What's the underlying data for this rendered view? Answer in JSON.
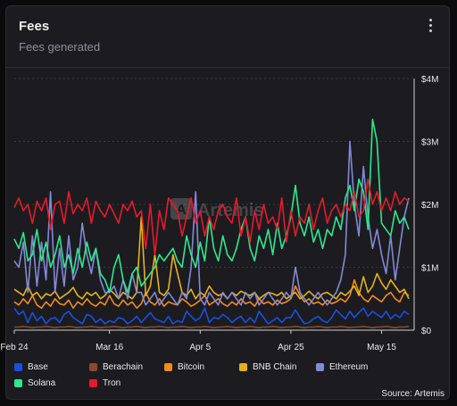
{
  "header": {
    "title": "Fees",
    "subtitle": "Fees generated",
    "menu_icon": "more-vertical-icon"
  },
  "watermark": "Artemis",
  "source": "Source: Artemis",
  "colors": {
    "Base": "#1b4fe0",
    "Berachain": "#8b4a2b",
    "Bitcoin": "#f08a24",
    "BNB Chain": "#e5b11a",
    "Ethereum": "#8389d6",
    "Solana": "#2ee88e",
    "Tron": "#e51b2a"
  },
  "chart_data": {
    "type": "line",
    "title": "Fees",
    "subtitle": "Fees generated",
    "x_ticks": [
      "Feb 24",
      "Mar 16",
      "Apr 5",
      "Apr 25",
      "May 15"
    ],
    "x_tick_index": [
      0,
      21,
      41,
      61,
      81
    ],
    "y_ticks": [
      "$0",
      "$1M",
      "$2M",
      "$3M",
      "$4M"
    ],
    "ylim": [
      0,
      4000000
    ],
    "grid": true,
    "legend_position": "bottom",
    "x_start": "2025-02-24",
    "x_end": "2025-05-20",
    "series": [
      {
        "name": "Base",
        "values": [
          0.35,
          0.25,
          0.3,
          0.12,
          0.28,
          0.15,
          0.22,
          0.1,
          0.18,
          0.2,
          0.12,
          0.25,
          0.3,
          0.2,
          0.15,
          0.1,
          0.25,
          0.22,
          0.12,
          0.18,
          0.1,
          0.15,
          0.12,
          0.2,
          0.18,
          0.1,
          0.15,
          0.22,
          0.12,
          0.2,
          0.28,
          0.18,
          0.15,
          0.12,
          0.22,
          0.1,
          0.15,
          0.12,
          0.3,
          0.22,
          0.15,
          0.2,
          0.35,
          0.12,
          0.2,
          0.18,
          0.25,
          0.2,
          0.12,
          0.18,
          0.22,
          0.12,
          0.2,
          0.12,
          0.3,
          0.2,
          0.1,
          0.15,
          0.2,
          0.12,
          0.2,
          0.2,
          0.32,
          0.2,
          0.1,
          0.12,
          0.18,
          0.22,
          0.15,
          0.12,
          0.2,
          0.32,
          0.25,
          0.18,
          0.3,
          0.2,
          0.28,
          0.35,
          0.22,
          0.3,
          0.25,
          0.2,
          0.3,
          0.18,
          0.25,
          0.2,
          0.3,
          0.25
        ]
      },
      {
        "name": "Berachain",
        "values": [
          0.05,
          0.05,
          0.06,
          0.05,
          0.04,
          0.05,
          0.05,
          0.06,
          0.05,
          0.04,
          0.05,
          0.05,
          0.06,
          0.05,
          0.04,
          0.05,
          0.05,
          0.06,
          0.05,
          0.04,
          0.05,
          0.05,
          0.06,
          0.05,
          0.04,
          0.05,
          0.05,
          0.06,
          0.05,
          0.04,
          0.05,
          0.05,
          0.06,
          0.05,
          0.04,
          0.05,
          0.05,
          0.06,
          0.05,
          0.04,
          0.05,
          0.05,
          0.06,
          0.05,
          0.04,
          0.05,
          0.05,
          0.06,
          0.05,
          0.04,
          0.05,
          0.05,
          0.06,
          0.05,
          0.04,
          0.05,
          0.05,
          0.06,
          0.05,
          0.04,
          0.05,
          0.05,
          0.06,
          0.05,
          0.04,
          0.05,
          0.05,
          0.06,
          0.05,
          0.04,
          0.05,
          0.05,
          0.06,
          0.05,
          0.04,
          0.05,
          0.05,
          0.06,
          0.05,
          0.04,
          0.05,
          0.05,
          0.06,
          0.05,
          0.04,
          0.05,
          0.05,
          0.06
        ]
      },
      {
        "name": "Bitcoin",
        "values": [
          0.45,
          0.4,
          0.5,
          0.42,
          0.55,
          0.4,
          0.35,
          0.45,
          0.38,
          0.5,
          0.42,
          0.4,
          0.48,
          0.35,
          0.45,
          0.4,
          0.5,
          0.42,
          0.38,
          0.45,
          0.4,
          0.55,
          0.42,
          0.38,
          0.48,
          0.4,
          0.45,
          0.35,
          0.42,
          0.6,
          0.45,
          0.4,
          0.5,
          0.38,
          0.45,
          0.42,
          0.4,
          0.5,
          0.45,
          0.38,
          0.42,
          0.48,
          0.55,
          0.4,
          0.45,
          0.5,
          0.42,
          0.38,
          0.45,
          0.4,
          0.5,
          0.42,
          0.45,
          0.38,
          0.5,
          0.42,
          0.45,
          0.4,
          0.48,
          0.42,
          0.45,
          0.5,
          0.7,
          0.55,
          0.45,
          0.5,
          0.42,
          0.45,
          0.4,
          0.48,
          0.42,
          0.45,
          0.5,
          0.45,
          0.55,
          0.8,
          0.6,
          0.5,
          0.45,
          0.55,
          0.5,
          0.45,
          0.55,
          0.6,
          0.5,
          0.45,
          0.6,
          0.55
        ]
      },
      {
        "name": "BNB Chain",
        "values": [
          0.65,
          0.6,
          0.55,
          0.7,
          0.55,
          0.6,
          0.5,
          0.58,
          0.55,
          0.62,
          0.5,
          0.55,
          0.6,
          0.68,
          0.55,
          0.5,
          0.6,
          0.55,
          0.6,
          0.5,
          0.55,
          0.65,
          0.58,
          0.5,
          0.6,
          0.55,
          0.5,
          0.6,
          1.8,
          0.55,
          0.7,
          1.2,
          0.6,
          0.55,
          0.65,
          1.2,
          0.9,
          0.6,
          0.55,
          0.65,
          0.5,
          0.6,
          0.55,
          0.7,
          0.6,
          0.55,
          0.58,
          0.5,
          0.6,
          0.55,
          0.62,
          0.58,
          0.55,
          0.6,
          0.5,
          0.55,
          0.6,
          0.58,
          0.55,
          0.6,
          0.5,
          0.55,
          0.6,
          0.5,
          0.55,
          0.62,
          0.55,
          0.5,
          0.58,
          0.6,
          0.55,
          0.5,
          0.6,
          0.55,
          0.62,
          0.7,
          0.55,
          0.85,
          0.6,
          0.7,
          0.9,
          0.75,
          0.65,
          0.8,
          0.7,
          0.6,
          0.65,
          0.5
        ]
      },
      {
        "name": "Ethereum",
        "values": [
          1.1,
          1.0,
          1.4,
          0.6,
          1.5,
          0.7,
          1.4,
          0.8,
          2.2,
          0.6,
          1.3,
          0.7,
          1.5,
          0.8,
          1.0,
          1.7,
          1.2,
          0.9,
          1.3,
          0.8,
          0.6,
          0.6,
          0.7,
          0.5,
          0.8,
          0.5,
          0.9,
          0.6,
          0.6,
          0.4,
          0.5,
          0.6,
          0.4,
          0.5,
          0.6,
          0.5,
          0.4,
          0.6,
          0.5,
          1.0,
          2.2,
          0.5,
          0.4,
          0.6,
          0.5,
          0.4,
          0.6,
          0.5,
          0.6,
          0.5,
          0.4,
          0.6,
          0.5,
          0.6,
          0.4,
          0.5,
          0.6,
          0.5,
          0.4,
          0.5,
          0.6,
          0.5,
          1.0,
          0.6,
          0.5,
          0.4,
          0.5,
          0.6,
          0.5,
          0.4,
          0.5,
          0.6,
          0.8,
          1.2,
          3.0,
          2.0,
          1.5,
          2.6,
          1.8,
          1.3,
          1.6,
          1.2,
          0.9,
          1.5,
          0.8,
          1.3,
          1.8,
          2.1
        ]
      },
      {
        "name": "Solana",
        "values": [
          1.45,
          1.3,
          1.55,
          1.1,
          1.2,
          1.6,
          1.1,
          1.4,
          1.0,
          1.2,
          1.5,
          1.0,
          1.2,
          0.9,
          1.3,
          1.0,
          1.4,
          1.1,
          1.3,
          0.9,
          0.8,
          0.6,
          1.0,
          1.2,
          0.8,
          0.6,
          0.9,
          1.0,
          0.7,
          0.8,
          0.9,
          1.0,
          1.2,
          1.1,
          1.2,
          1.3,
          1.1,
          1.0,
          1.5,
          1.2,
          1.0,
          1.4,
          1.1,
          1.8,
          1.3,
          1.1,
          1.5,
          1.2,
          1.1,
          1.3,
          1.6,
          1.8,
          1.3,
          1.1,
          1.5,
          1.3,
          1.6,
          1.2,
          1.7,
          1.3,
          1.5,
          1.8,
          2.3,
          1.7,
          1.5,
          1.8,
          1.4,
          1.6,
          1.3,
          1.6,
          1.5,
          1.8,
          1.6,
          2.1,
          2.3,
          1.9,
          2.4,
          2.2,
          1.6,
          3.35,
          3.0,
          1.7,
          1.6,
          1.5,
          1.9,
          1.7,
          1.8,
          1.6
        ]
      },
      {
        "name": "Tron",
        "values": [
          1.95,
          2.1,
          1.9,
          2.0,
          1.7,
          2.05,
          1.9,
          2.1,
          1.6,
          2.0,
          2.05,
          1.7,
          2.2,
          1.85,
          2.0,
          1.9,
          2.1,
          1.7,
          2.05,
          1.9,
          1.8,
          2.0,
          1.85,
          1.7,
          2.0,
          1.9,
          2.05,
          1.8,
          1.9,
          1.3,
          2.0,
          1.2,
          1.9,
          1.6,
          2.1,
          2.0,
          1.9,
          1.5,
          1.8,
          2.1,
          1.7,
          1.9,
          1.5,
          1.8,
          1.6,
          1.9,
          2.0,
          1.8,
          1.7,
          2.1,
          1.5,
          1.8,
          1.4,
          1.9,
          1.6,
          2.0,
          1.7,
          1.8,
          1.6,
          2.1,
          1.4,
          1.9,
          1.5,
          1.8,
          1.7,
          2.0,
          1.6,
          1.9,
          2.1,
          1.7,
          1.9,
          2.0,
          1.8,
          2.0,
          1.9,
          2.2,
          1.8,
          1.9,
          2.4,
          2.0,
          2.2,
          1.9,
          2.1,
          1.9,
          2.2,
          2.0,
          2.1,
          2.05
        ]
      }
    ]
  }
}
